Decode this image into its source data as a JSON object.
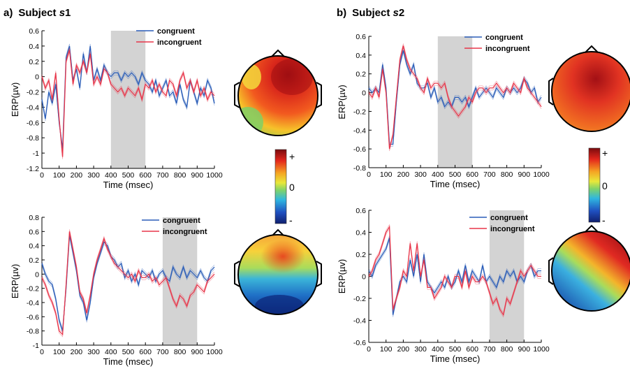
{
  "panels": [
    {
      "letter": "a)",
      "label_prefix": "Subject ",
      "label_italic": "s",
      "label_suffix": "1"
    },
    {
      "letter": "b)",
      "label_prefix": "Subject ",
      "label_italic": "s",
      "label_suffix": "2"
    }
  ],
  "colorbar": {
    "top": "+",
    "mid": "0",
    "bottom": "-"
  },
  "colors": {
    "congruent": "#2a5db8",
    "incongruent": "#e8364a",
    "shade": "#d3d3d3"
  },
  "chart_data": [
    {
      "type": "line",
      "panel": "a) Subject s1 (top)",
      "xlabel": "Time (msec)",
      "ylabel": "ERP(µv)",
      "xlim": [
        0,
        1000
      ],
      "ylim": [
        -1.2,
        0.6
      ],
      "xticks": [
        0,
        100,
        200,
        300,
        400,
        500,
        600,
        700,
        800,
        900,
        1000
      ],
      "yticks": [
        -1.2,
        -1,
        -0.8,
        -0.6,
        -0.4,
        -0.2,
        0,
        0.2,
        0.4,
        0.6
      ],
      "shaded_window": [
        400,
        600
      ],
      "legend": [
        "congruent",
        "incongruent"
      ],
      "x": [
        0,
        20,
        40,
        60,
        80,
        100,
        120,
        140,
        160,
        180,
        200,
        220,
        240,
        260,
        280,
        300,
        320,
        340,
        360,
        380,
        400,
        420,
        440,
        460,
        480,
        500,
        520,
        540,
        560,
        580,
        600,
        620,
        640,
        660,
        680,
        700,
        720,
        740,
        760,
        780,
        800,
        820,
        840,
        860,
        880,
        900,
        920,
        940,
        960,
        980,
        1000
      ],
      "series": [
        {
          "name": "congruent",
          "values": [
            -0.3,
            -0.55,
            -0.2,
            -0.35,
            -0.1,
            -0.6,
            -0.95,
            0.25,
            0.4,
            -0.05,
            0.1,
            -0.15,
            0.3,
            0.05,
            0.4,
            -0.05,
            0.1,
            -0.05,
            0.15,
            0.05,
            0.0,
            0.05,
            0.05,
            -0.05,
            0.05,
            0.0,
            0.05,
            0.0,
            -0.1,
            0.05,
            -0.05,
            -0.1,
            -0.2,
            -0.05,
            -0.25,
            -0.15,
            -0.05,
            -0.25,
            -0.2,
            -0.35,
            -0.1,
            -0.3,
            -0.4,
            -0.05,
            -0.2,
            -0.35,
            -0.15,
            -0.25,
            -0.05,
            -0.15,
            -0.35
          ]
        },
        {
          "name": "incongruent",
          "values": [
            0.0,
            -0.15,
            -0.05,
            -0.3,
            0.05,
            -0.55,
            -1.05,
            0.2,
            0.35,
            -0.1,
            0.15,
            0.05,
            0.2,
            0.05,
            0.3,
            -0.1,
            0.0,
            -0.1,
            0.1,
            0.05,
            -0.1,
            -0.15,
            -0.2,
            -0.15,
            -0.25,
            -0.15,
            -0.2,
            -0.25,
            -0.15,
            -0.3,
            -0.1,
            -0.15,
            -0.05,
            -0.2,
            -0.1,
            -0.2,
            -0.25,
            -0.05,
            -0.1,
            -0.25,
            -0.05,
            0.05,
            -0.15,
            -0.05,
            -0.2,
            -0.05,
            -0.25,
            -0.15,
            -0.3,
            -0.2,
            -0.25
          ]
        }
      ]
    },
    {
      "type": "line",
      "panel": "a) Subject s1 (bottom)",
      "xlabel": "Time (msec)",
      "ylabel": "ERP(µv)",
      "xlim": [
        0,
        1000
      ],
      "ylim": [
        -1.0,
        0.8
      ],
      "xticks": [
        0,
        100,
        200,
        300,
        400,
        500,
        600,
        700,
        800,
        900,
        1000
      ],
      "yticks": [
        -1,
        -0.8,
        -0.6,
        -0.4,
        -0.2,
        0,
        0.2,
        0.4,
        0.6,
        0.8
      ],
      "shaded_window": [
        700,
        900
      ],
      "legend": [
        "congruent",
        "incongruent"
      ],
      "x": [
        0,
        20,
        40,
        60,
        80,
        100,
        120,
        140,
        160,
        180,
        200,
        220,
        240,
        260,
        280,
        300,
        320,
        340,
        360,
        380,
        400,
        420,
        440,
        460,
        480,
        500,
        520,
        540,
        560,
        580,
        600,
        620,
        640,
        660,
        680,
        700,
        720,
        740,
        760,
        780,
        800,
        820,
        840,
        860,
        880,
        900,
        920,
        940,
        960,
        980,
        1000
      ],
      "series": [
        {
          "name": "congruent",
          "values": [
            0.15,
            0.0,
            -0.1,
            -0.15,
            -0.35,
            -0.65,
            -0.8,
            -0.2,
            0.55,
            0.3,
            0.05,
            -0.3,
            -0.4,
            -0.65,
            -0.4,
            -0.05,
            0.15,
            0.3,
            0.45,
            0.4,
            0.25,
            0.2,
            0.1,
            0.15,
            -0.05,
            0.05,
            -0.1,
            0.0,
            -0.15,
            0.05,
            0.0,
            -0.05,
            0.05,
            -0.1,
            0.0,
            0.05,
            -0.05,
            -0.1,
            0.1,
            0.0,
            -0.05,
            0.1,
            -0.05,
            0.05,
            0.0,
            -0.05,
            0.05,
            -0.05,
            -0.1,
            0.05,
            0.1
          ]
        },
        {
          "name": "incongruent",
          "values": [
            -0.05,
            -0.15,
            -0.3,
            -0.4,
            -0.55,
            -0.8,
            -0.85,
            -0.15,
            0.6,
            0.35,
            0.1,
            -0.25,
            -0.35,
            -0.55,
            -0.3,
            0.0,
            0.2,
            0.35,
            0.5,
            0.35,
            0.25,
            0.15,
            0.1,
            0.05,
            0.0,
            -0.05,
            0.0,
            -0.1,
            0.05,
            -0.05,
            -0.05,
            0.0,
            -0.1,
            -0.05,
            -0.15,
            -0.1,
            -0.05,
            -0.2,
            -0.35,
            -0.45,
            -0.3,
            -0.35,
            -0.45,
            -0.3,
            -0.25,
            -0.15,
            -0.2,
            -0.25,
            -0.1,
            -0.05,
            0.0
          ]
        }
      ]
    },
    {
      "type": "line",
      "panel": "b) Subject s2 (top)",
      "xlabel": "Time (msec)",
      "ylabel": "ERP(µv)",
      "xlim": [
        0,
        1000
      ],
      "ylim": [
        -0.8,
        0.6
      ],
      "xticks": [
        0,
        100,
        200,
        300,
        400,
        500,
        600,
        700,
        800,
        900,
        1000
      ],
      "yticks": [
        -0.8,
        -0.6,
        -0.4,
        -0.2,
        0,
        0.2,
        0.4,
        0.6
      ],
      "shaded_window": [
        400,
        600
      ],
      "legend": [
        "congruent",
        "incongruent"
      ],
      "x": [
        0,
        20,
        40,
        60,
        80,
        100,
        120,
        140,
        160,
        180,
        200,
        220,
        240,
        260,
        280,
        300,
        320,
        340,
        360,
        380,
        400,
        420,
        440,
        460,
        480,
        500,
        520,
        540,
        560,
        580,
        600,
        620,
        640,
        660,
        680,
        700,
        720,
        740,
        760,
        780,
        800,
        820,
        840,
        860,
        880,
        900,
        920,
        940,
        960,
        980,
        1000
      ],
      "series": [
        {
          "name": "congruent",
          "values": [
            0.05,
            0.0,
            0.05,
            0.0,
            0.3,
            0.05,
            -0.55,
            -0.55,
            -0.1,
            0.3,
            0.45,
            0.3,
            0.2,
            0.3,
            0.1,
            0.05,
            0.05,
            0.1,
            -0.05,
            0.05,
            -0.1,
            -0.05,
            -0.15,
            -0.1,
            -0.15,
            -0.05,
            -0.05,
            -0.1,
            -0.05,
            -0.15,
            -0.05,
            0.05,
            -0.05,
            0.0,
            0.05,
            0.0,
            -0.05,
            0.05,
            0.0,
            -0.05,
            0.05,
            0.0,
            0.05,
            0.0,
            0.05,
            0.15,
            0.1,
            0.0,
            0.05,
            -0.1,
            -0.05
          ]
        },
        {
          "name": "incongruent",
          "values": [
            0.0,
            -0.05,
            0.05,
            -0.05,
            0.25,
            0.0,
            -0.6,
            -0.45,
            -0.05,
            0.35,
            0.5,
            0.35,
            0.25,
            0.2,
            0.15,
            0.05,
            0.0,
            0.15,
            0.05,
            0.1,
            0.1,
            0.05,
            0.1,
            -0.05,
            -0.15,
            -0.2,
            -0.25,
            -0.2,
            -0.15,
            -0.05,
            -0.1,
            0.0,
            0.05,
            0.05,
            0.0,
            0.05,
            0.05,
            0.1,
            0.05,
            0.0,
            0.05,
            0.0,
            0.1,
            0.05,
            0.0,
            0.15,
            0.05,
            0.0,
            -0.05,
            -0.1,
            -0.15
          ]
        }
      ]
    },
    {
      "type": "line",
      "panel": "b) Subject s2 (bottom)",
      "xlabel": "Time (msec)",
      "ylabel": "ERP(µv)",
      "xlim": [
        0,
        1000
      ],
      "ylim": [
        -0.6,
        0.6
      ],
      "xticks": [
        0,
        100,
        200,
        300,
        400,
        500,
        600,
        700,
        800,
        900,
        1000
      ],
      "yticks": [
        -0.6,
        -0.4,
        -0.2,
        0,
        0.2,
        0.4,
        0.6
      ],
      "shaded_window": [
        700,
        900
      ],
      "legend": [
        "congruent",
        "incongruent"
      ],
      "x": [
        0,
        20,
        40,
        60,
        80,
        100,
        120,
        140,
        160,
        180,
        200,
        220,
        240,
        260,
        280,
        300,
        320,
        340,
        360,
        380,
        400,
        420,
        440,
        460,
        480,
        500,
        520,
        540,
        560,
        580,
        600,
        620,
        640,
        660,
        680,
        700,
        720,
        740,
        760,
        780,
        800,
        820,
        840,
        860,
        880,
        900,
        920,
        940,
        960,
        980,
        1000
      ],
      "series": [
        {
          "name": "congruent",
          "values": [
            0.05,
            0.0,
            0.1,
            0.15,
            0.2,
            0.25,
            0.35,
            -0.35,
            -0.2,
            -0.05,
            0.0,
            -0.05,
            0.15,
            0.0,
            0.2,
            -0.05,
            0.2,
            -0.05,
            -0.1,
            -0.15,
            -0.1,
            -0.05,
            -0.1,
            0.0,
            -0.1,
            -0.05,
            0.05,
            -0.05,
            0.1,
            -0.05,
            0.05,
            0.0,
            -0.05,
            0.1,
            -0.05,
            0.0,
            -0.05,
            -0.1,
            0.0,
            -0.05,
            0.05,
            0.0,
            0.05,
            -0.05,
            0.0,
            -0.05,
            0.05,
            0.1,
            0.0,
            0.05,
            0.05
          ]
        },
        {
          "name": "incongruent",
          "values": [
            0.0,
            0.05,
            0.15,
            0.2,
            0.3,
            0.4,
            0.45,
            -0.3,
            -0.2,
            -0.1,
            0.05,
            0.0,
            0.3,
            0.05,
            0.3,
            0.0,
            0.15,
            -0.1,
            -0.1,
            -0.2,
            -0.15,
            -0.1,
            0.0,
            -0.05,
            -0.1,
            0.0,
            0.0,
            -0.1,
            0.05,
            -0.1,
            0.0,
            -0.05,
            -0.05,
            0.0,
            -0.05,
            -0.15,
            -0.25,
            -0.2,
            -0.3,
            -0.35,
            -0.2,
            -0.25,
            -0.15,
            -0.05,
            0.05,
            0.0,
            0.05,
            0.1,
            0.05,
            0.0,
            0.0
          ]
        }
      ]
    }
  ]
}
